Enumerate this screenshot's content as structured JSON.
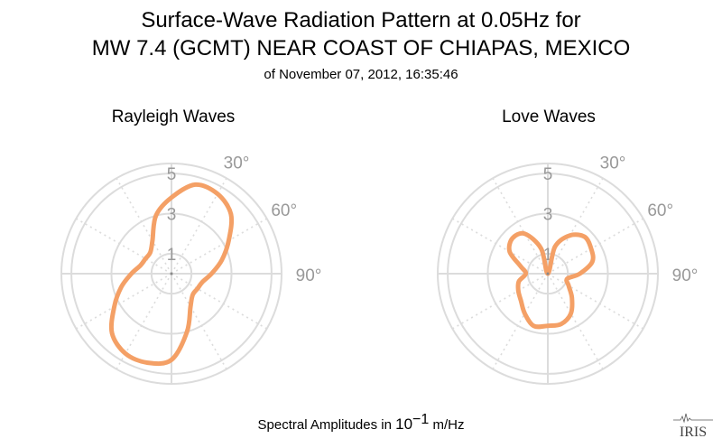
{
  "header": {
    "title_line1": "Surface-Wave Radiation Pattern at 0.05Hz for",
    "title_line2": "MW 7.4 (GCMT) NEAR COAST OF CHIAPAS, MEXICO",
    "subtitle": "of November 07, 2012, 16:35:46"
  },
  "footer": {
    "prefix": "Spectral Amplitudes in ",
    "power_base": "10",
    "power_exp": "−1",
    "unit": " m/Hz"
  },
  "logo": {
    "text": "IRIS"
  },
  "colors": {
    "curve": "#f4a066",
    "grid": "#dcdcdc",
    "tick_text": "#999999"
  },
  "chart_data": [
    {
      "type": "polar",
      "title": "Rayleigh Waves",
      "radial_ticks": [
        1,
        3,
        5
      ],
      "radial_tick_labels": [
        "1",
        "3",
        "5"
      ],
      "angle_tick_labels": [
        "30°",
        "60°",
        "90°"
      ],
      "rmax": 5.5,
      "grid": true,
      "azimuth_deg": [
        0,
        15,
        30,
        45,
        60,
        75,
        90,
        105,
        120,
        135,
        150,
        165,
        180,
        195,
        210,
        225,
        240,
        255,
        270,
        285,
        300,
        315,
        330,
        345
      ],
      "amplitude": [
        3.8,
        4.6,
        4.6,
        4.2,
        3.3,
        2.6,
        2.0,
        1.6,
        1.5,
        1.5,
        1.9,
        3.0,
        4.3,
        4.6,
        4.6,
        4.2,
        3.3,
        2.6,
        2.0,
        1.6,
        1.5,
        1.5,
        1.9,
        3.0
      ]
    },
    {
      "type": "polar",
      "title": "Love Waves",
      "radial_ticks": [
        1,
        3,
        5
      ],
      "radial_tick_labels": [
        "1",
        "3",
        "5"
      ],
      "angle_tick_labels": [
        "30°",
        "60°",
        "90°"
      ],
      "rmax": 5.5,
      "grid": true,
      "azimuth_deg": [
        0,
        15,
        30,
        45,
        60,
        75,
        90,
        105,
        120,
        135,
        150,
        165,
        180,
        195,
        210,
        225,
        240,
        255,
        270,
        285,
        300,
        315,
        330,
        345
      ],
      "amplitude": [
        0.0,
        1.4,
        2.2,
        2.6,
        2.5,
        2.3,
        1.6,
        1.0,
        1.2,
        1.7,
        2.3,
        2.6,
        2.6,
        2.7,
        2.3,
        1.9,
        1.7,
        1.5,
        1.1,
        1.4,
        2.2,
        2.5,
        2.3,
        1.3
      ]
    }
  ]
}
